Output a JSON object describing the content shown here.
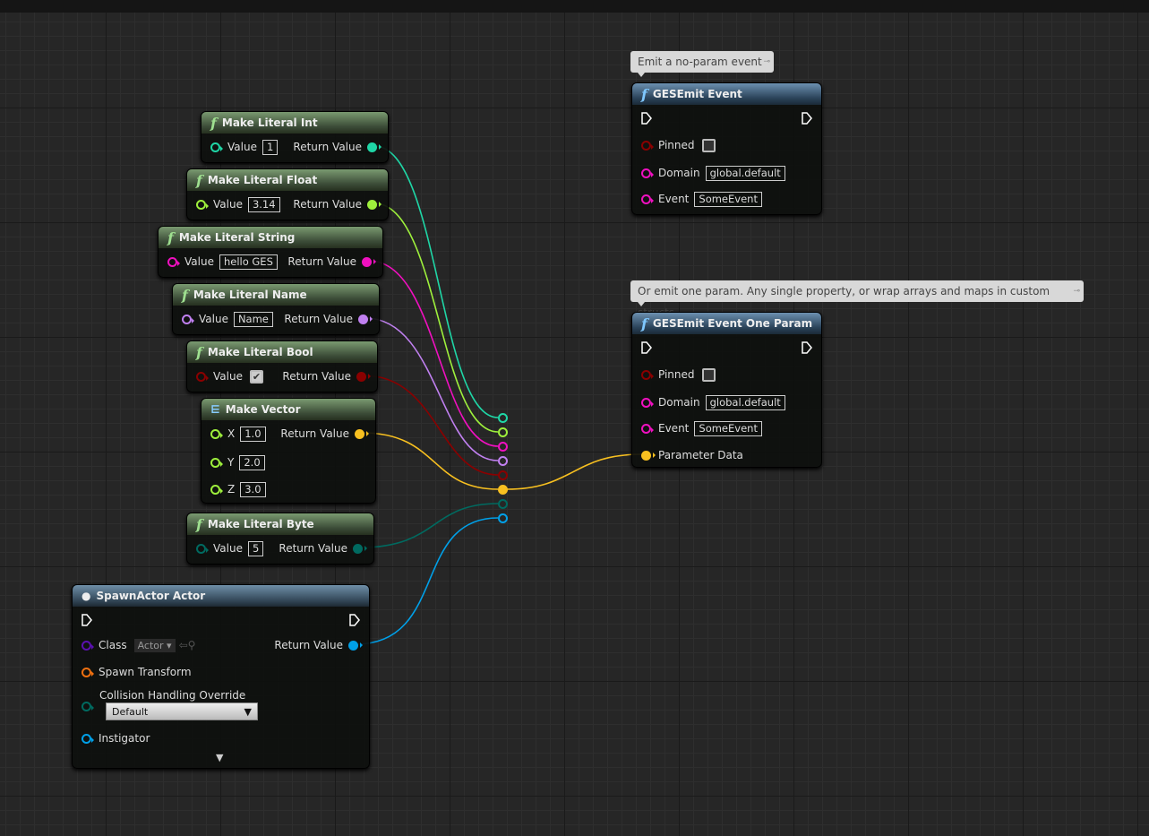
{
  "colors": {
    "int": "#1fd6a6",
    "float": "#9ef03c",
    "string": "#f010c0",
    "name": "#c080f0",
    "bool": "#8a0000",
    "vector": "#f8c020",
    "byte": "#006a60",
    "object": "#00a0e8",
    "class": "#5a10b0",
    "transform": "#f07010",
    "exec": "#ffffff"
  },
  "literals": [
    {
      "title": "Make Literal Int",
      "label": "Value",
      "value": "1",
      "ret": "Return Value",
      "type": "int"
    },
    {
      "title": "Make Literal Float",
      "label": "Value",
      "value": "3.14",
      "ret": "Return Value",
      "type": "float"
    },
    {
      "title": "Make Literal String",
      "label": "Value",
      "value": "hello GES",
      "ret": "Return Value",
      "type": "string"
    },
    {
      "title": "Make Literal Name",
      "label": "Value",
      "value": "Name",
      "ret": "Return Value",
      "type": "name"
    },
    {
      "title": "Make Literal Bool",
      "label": "Value",
      "value": true,
      "ret": "Return Value",
      "type": "bool"
    },
    {
      "title": "Make Literal Byte",
      "label": "Value",
      "value": "5",
      "ret": "Return Value",
      "type": "byte"
    }
  ],
  "vector": {
    "title": "Make Vector",
    "x_label": "X",
    "x": "1.0",
    "y_label": "Y",
    "y": "2.0",
    "z_label": "Z",
    "z": "3.0",
    "ret": "Return Value"
  },
  "spawn": {
    "title": "SpawnActor Actor",
    "class_label": "Class",
    "class_value": "Actor",
    "transform_label": "Spawn Transform",
    "collision_label": "Collision Handling Override",
    "collision_value": "Default",
    "instigator_label": "Instigator",
    "ret": "Return Value"
  },
  "emit": {
    "comment": "Emit a no-param event",
    "title": "GESEmit Event",
    "pinned_label": "Pinned",
    "pinned": false,
    "domain_label": "Domain",
    "domain": "global.default",
    "event_label": "Event",
    "event": "SomeEvent"
  },
  "emit_one": {
    "comment": "Or emit one param. Any single property, or wrap arrays and maps in custom structs",
    "title": "GESEmit Event One Param",
    "pinned_label": "Pinned",
    "pinned": false,
    "domain_label": "Domain",
    "domain": "global.default",
    "event_label": "Event",
    "event": "SomeEvent",
    "param_label": "Parameter Data"
  }
}
